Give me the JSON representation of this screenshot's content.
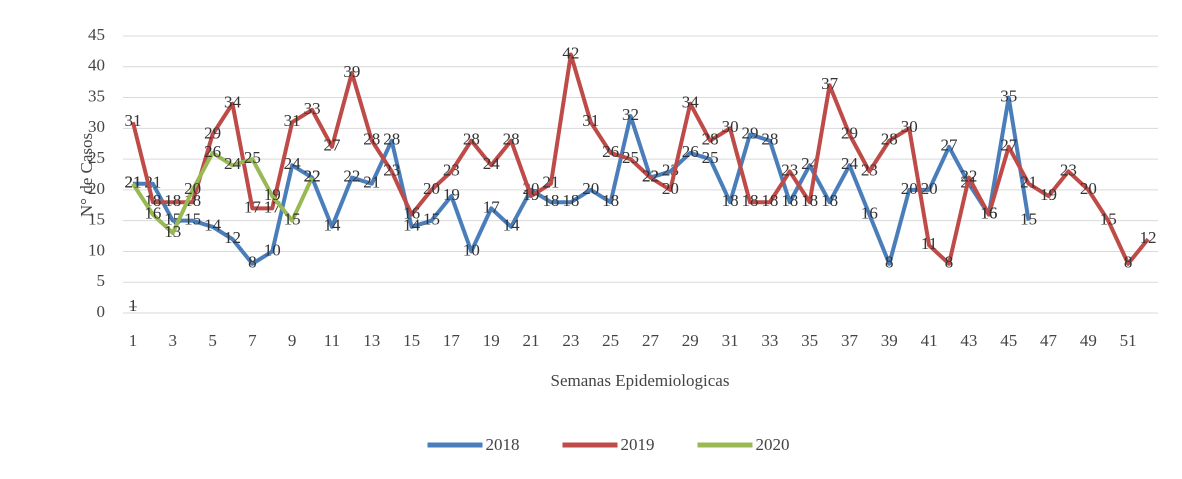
{
  "chart_data": {
    "type": "line",
    "x": [
      1,
      2,
      3,
      4,
      5,
      6,
      7,
      8,
      9,
      10,
      11,
      12,
      13,
      14,
      15,
      16,
      17,
      18,
      19,
      20,
      21,
      22,
      23,
      24,
      25,
      26,
      27,
      28,
      29,
      30,
      31,
      32,
      33,
      34,
      35,
      36,
      37,
      38,
      39,
      40,
      41,
      42,
      43,
      44,
      45,
      46,
      47,
      48,
      49,
      50,
      51,
      52
    ],
    "series": [
      {
        "name": "2018",
        "color": "#4a7ebb",
        "values": [
          21,
          21,
          15,
          15,
          14,
          12,
          8,
          10,
          24,
          22,
          14,
          22,
          21,
          28,
          14,
          15,
          19,
          10,
          17,
          14,
          20,
          18,
          18,
          20,
          18,
          32,
          22,
          23,
          26,
          25,
          18,
          29,
          28,
          18,
          24,
          18,
          24,
          16,
          8,
          20,
          20,
          27,
          21,
          16,
          35,
          15,
          null,
          null,
          null,
          null,
          null,
          null
        ]
      },
      {
        "name": "2019",
        "color": "#be4b48",
        "values": [
          31,
          18,
          18,
          18,
          29,
          34,
          17,
          17,
          31,
          33,
          27,
          39,
          28,
          23,
          16,
          20,
          23,
          28,
          24,
          28,
          19,
          21,
          42,
          31,
          26,
          25,
          22,
          20,
          34,
          28,
          30,
          18,
          18,
          23,
          18,
          37,
          29,
          23,
          28,
          30,
          11,
          8,
          22,
          16,
          27,
          21,
          19,
          23,
          20,
          15,
          8,
          12
        ]
      },
      {
        "name": "2020",
        "color": "#98b954",
        "values": [
          21,
          16,
          13,
          20,
          26,
          24,
          25,
          19,
          15,
          22,
          null,
          null,
          null,
          null,
          null,
          null,
          null,
          null,
          null,
          null,
          null,
          null,
          null,
          null,
          null,
          null,
          null,
          null,
          null,
          null,
          null,
          null,
          null,
          null,
          null,
          null,
          null,
          null,
          null,
          null,
          null,
          null,
          null,
          null,
          null,
          null,
          null,
          null,
          null,
          null,
          null,
          null
        ]
      },
      {
        "color": "#7f7f7f",
        "values": [
          1,
          null,
          null,
          null,
          null,
          null,
          null,
          null,
          null,
          null,
          null,
          null,
          null,
          null,
          null,
          null,
          null,
          null,
          null,
          null,
          null,
          null,
          null,
          null,
          null,
          null,
          null,
          null,
          null,
          null,
          null,
          null,
          null,
          null,
          null,
          null,
          null,
          null,
          null,
          null,
          null,
          null,
          null,
          null,
          null,
          null,
          null,
          null,
          null,
          null,
          null,
          null
        ]
      }
    ],
    "xlim": [
      0.5,
      52.5
    ],
    "xticks": [
      1,
      3,
      5,
      7,
      9,
      11,
      13,
      15,
      17,
      19,
      21,
      23,
      25,
      27,
      29,
      31,
      33,
      35,
      37,
      39,
      41,
      43,
      45,
      47,
      49,
      51
    ],
    "ylim": [
      0,
      45
    ],
    "yticks": [
      0,
      5,
      10,
      15,
      20,
      25,
      30,
      35,
      40,
      45
    ],
    "x_label": "Semanas Epidemiologicas",
    "y_label": "N° de Casos",
    "grid": true,
    "legend": "bottom"
  }
}
